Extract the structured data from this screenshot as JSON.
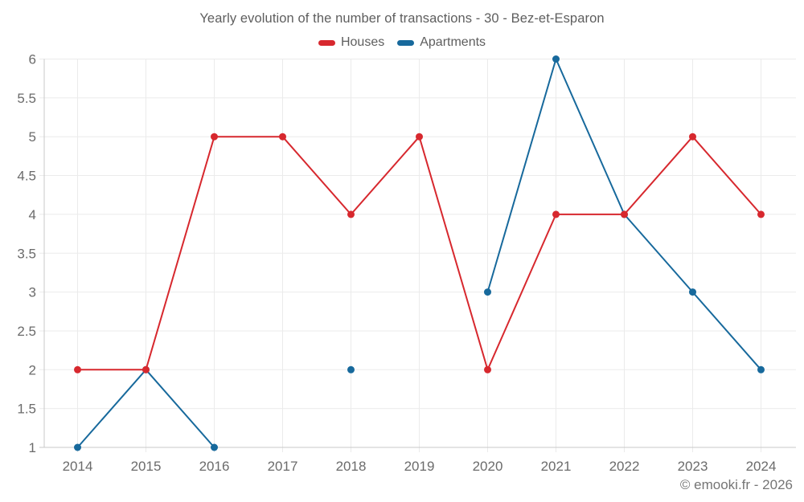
{
  "footer": {
    "copyright": "© emooki.fr - 2026"
  },
  "chart_data": {
    "type": "line",
    "title": "Yearly evolution of the number of transactions - 30 - Bez-et-Esparon",
    "categories": [
      "2014",
      "2015",
      "2016",
      "2017",
      "2018",
      "2019",
      "2020",
      "2021",
      "2022",
      "2023",
      "2024"
    ],
    "series": [
      {
        "name": "Houses",
        "color": "#d7282e",
        "values": [
          2,
          2,
          5,
          5,
          4,
          5,
          2,
          4,
          4,
          5,
          4
        ]
      },
      {
        "name": "Apartments",
        "color": "#17699c",
        "values": [
          1,
          2,
          1,
          null,
          2,
          null,
          3,
          6,
          4,
          3,
          2
        ]
      }
    ],
    "xlabel": "",
    "ylabel": "",
    "ylim": [
      1,
      6
    ],
    "ytick_step": 0.5,
    "grid": true,
    "legend_position": "top",
    "grid_color": "#ebebeb",
    "axis_color": "#c9c9c9",
    "tick_text_color": "#6b6b6b",
    "background_color": "#ffffff"
  }
}
